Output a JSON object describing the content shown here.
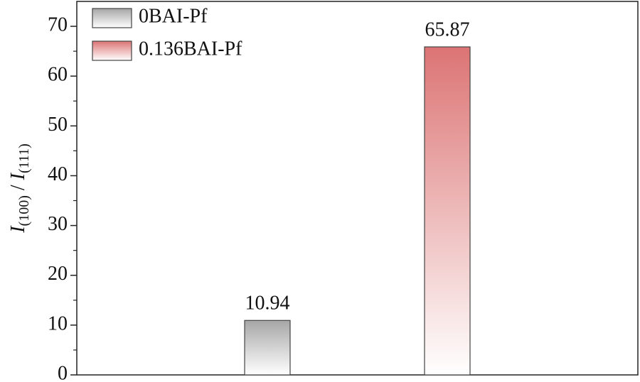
{
  "chart_data": {
    "type": "bar",
    "ylabel_parts": [
      "I",
      "(100)",
      " / ",
      "I",
      "(111)"
    ],
    "series": [
      {
        "name": "0BAI-Pf",
        "color": "#a6a6a6",
        "values": [
          10.94
        ]
      },
      {
        "name": "0.136BAI-Pf",
        "color": "#dc7474",
        "values": [
          65.87
        ]
      }
    ],
    "ylim": [
      0,
      75
    ],
    "yticks": [
      0,
      10,
      20,
      30,
      40,
      50,
      60,
      70
    ],
    "legend": "upper left"
  }
}
